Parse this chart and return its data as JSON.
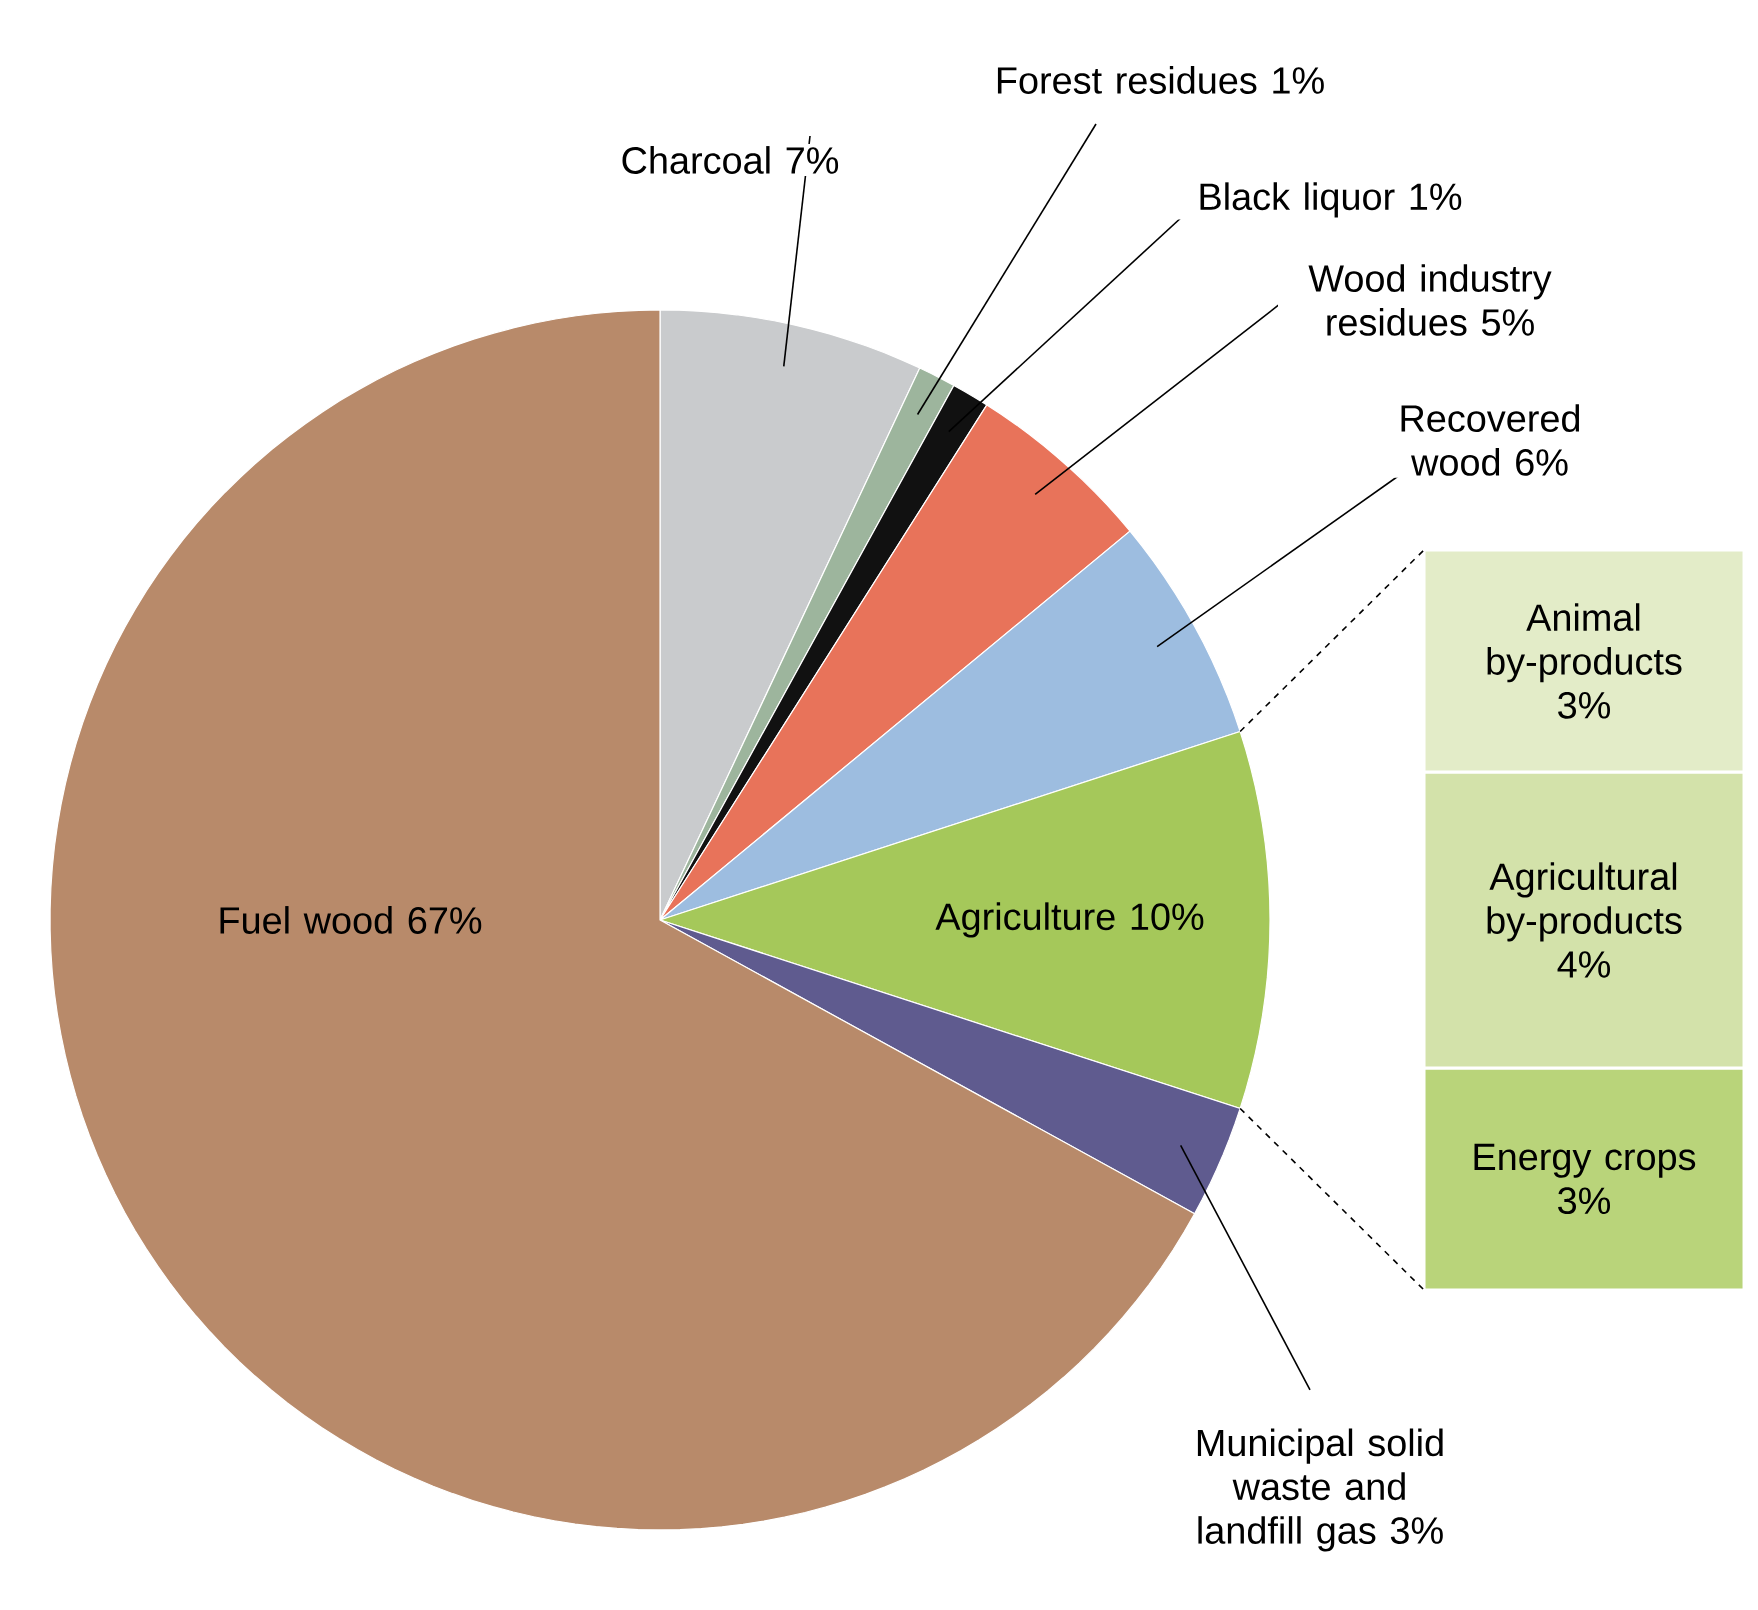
{
  "chart_data": [
    {
      "type": "pie",
      "categories": [
        "Charcoal",
        "Forest residues",
        "Black liquor",
        "Wood industry residues",
        "Recovered wood",
        "Agriculture",
        "Municipal solid waste and landfill gas",
        "Fuel wood"
      ],
      "values": [
        7,
        1,
        1,
        5,
        6,
        10,
        3,
        67
      ],
      "value_labels": [
        "7%",
        "1%",
        "1%",
        "5%",
        "6%",
        "10%",
        "3%",
        "67%"
      ],
      "colors": [
        "#c9cbcd",
        "#9db59d",
        "#111111",
        "#e8735a",
        "#9dbde0",
        "#a5c85a",
        "#5f5b8f",
        "#b88a6a"
      ]
    },
    {
      "type": "bar",
      "stacked": true,
      "categories": [
        null
      ],
      "series": [
        {
          "name": "Energy crops",
          "color": "#b9d47a",
          "values": [
            3
          ],
          "value_labels": [
            "3%"
          ]
        },
        {
          "name": "Agricultural by-products",
          "color": "#d3e2aa",
          "values": [
            4
          ],
          "value_labels": [
            "4%"
          ]
        },
        {
          "name": "Animal by-products",
          "color": "#e3ecc8",
          "values": [
            3
          ],
          "value_labels": [
            "3%"
          ]
        }
      ]
    }
  ]
}
